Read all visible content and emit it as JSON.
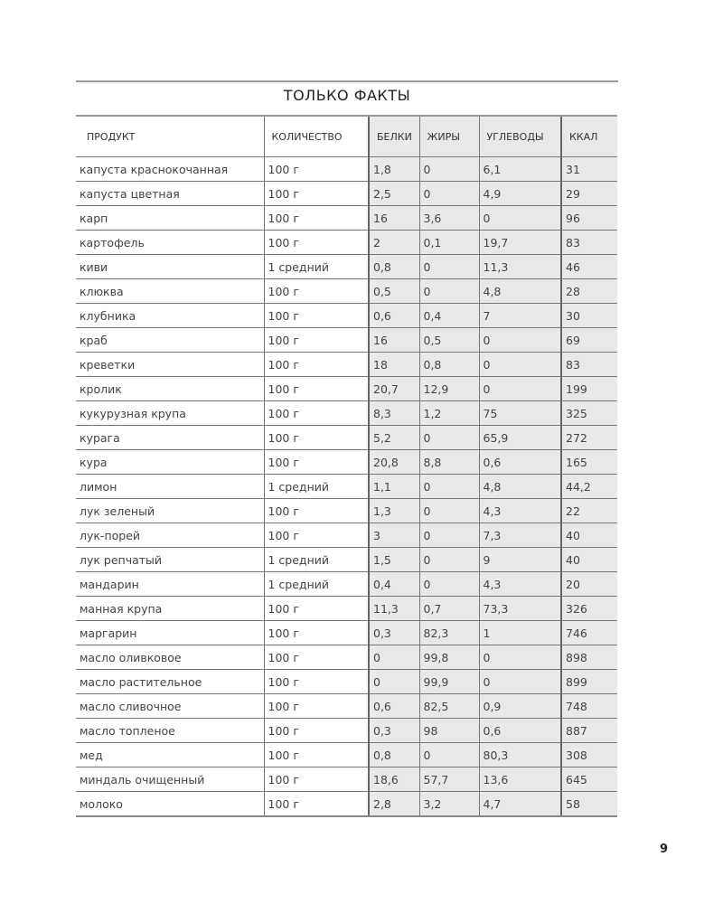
{
  "title": "ТОЛЬКО ФАКТЫ",
  "page_number": "9",
  "columns": [
    "ПРОДУКТ",
    "КОЛИЧЕСТВО",
    "БЕЛКИ",
    "ЖИРЫ",
    "УГЛЕВОДЫ",
    "ККАЛ"
  ],
  "rows": [
    [
      "капуста краснокочанная",
      "100 г",
      "1,8",
      "0",
      "6,1",
      "31"
    ],
    [
      "капуста цветная",
      "100 г",
      "2,5",
      "0",
      "4,9",
      "29"
    ],
    [
      "карп",
      "100 г",
      "16",
      "3,6",
      "0",
      "96"
    ],
    [
      "картофель",
      "100 г",
      "2",
      "0,1",
      "19,7",
      "83"
    ],
    [
      "киви",
      "1 средний",
      "0,8",
      "0",
      "11,3",
      "46"
    ],
    [
      "клюква",
      "100 г",
      "0,5",
      "0",
      "4,8",
      "28"
    ],
    [
      "клубника",
      "100 г",
      "0,6",
      "0,4",
      "7",
      "30"
    ],
    [
      "краб",
      "100 г",
      "16",
      "0,5",
      "0",
      "69"
    ],
    [
      "креветки",
      "100 г",
      "18",
      "0,8",
      "0",
      "83"
    ],
    [
      "кролик",
      "100 г",
      "20,7",
      "12,9",
      "0",
      "199"
    ],
    [
      "кукурузная крупа",
      "100 г",
      "8,3",
      "1,2",
      "75",
      "325"
    ],
    [
      "курага",
      "100 г",
      "5,2",
      "0",
      "65,9",
      "272"
    ],
    [
      "кура",
      "100 г",
      "20,8",
      "8,8",
      "0,6",
      "165"
    ],
    [
      "лимон",
      "1 средний",
      "1,1",
      "0",
      "4,8",
      "44,2"
    ],
    [
      "лук зеленый",
      "100 г",
      "1,3",
      "0",
      "4,3",
      "22"
    ],
    [
      "лук-порей",
      "100 г",
      "3",
      "0",
      "7,3",
      "40"
    ],
    [
      "лук репчатый",
      "1 средний",
      "1,5",
      "0",
      "9",
      "40"
    ],
    [
      "мандарин",
      "1 средний",
      "0,4",
      "0",
      "4,3",
      "20"
    ],
    [
      "манная крупа",
      "100 г",
      "11,3",
      "0,7",
      "73,3",
      "326"
    ],
    [
      "маргарин",
      "100 г",
      "0,3",
      "82,3",
      "1",
      "746"
    ],
    [
      "масло оливковое",
      "100 г",
      "0",
      "99,8",
      "0",
      "898"
    ],
    [
      "масло растительное",
      "100 г",
      "0",
      "99,9",
      "0",
      "899"
    ],
    [
      "масло сливочное",
      "100 г",
      "0,6",
      "82,5",
      "0,9",
      "748"
    ],
    [
      "масло топленое",
      "100 г",
      "0,3",
      "98",
      "0,6",
      "887"
    ],
    [
      "мед",
      "100 г",
      "0,8",
      "0",
      "80,3",
      "308"
    ],
    [
      "миндаль очищенный",
      "100 г",
      "18,6",
      "57,7",
      "13,6",
      "645"
    ],
    [
      "молоко",
      "100 г",
      "2,8",
      "3,2",
      "4,7",
      "58"
    ]
  ]
}
